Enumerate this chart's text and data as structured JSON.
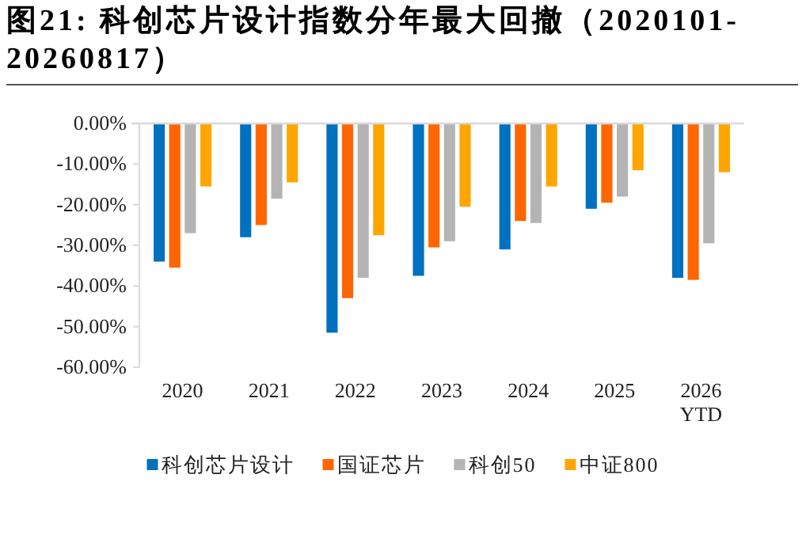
{
  "chart_data": {
    "type": "bar",
    "title": "图21: 科创芯片设计指数分年最大回撤（2020101-20260817）",
    "categories": [
      "2020",
      "2021",
      "2022",
      "2023",
      "2024",
      "2025",
      "2026 YTD"
    ],
    "series": [
      {
        "name": "科创芯片设计",
        "color": "#0070c0",
        "values": [
          -34,
          -28,
          -51.5,
          -37.5,
          -31,
          -21,
          -38
        ]
      },
      {
        "name": "国证芯片",
        "color": "#ff6600",
        "values": [
          -35.5,
          -25,
          -43,
          -30.5,
          -24,
          -19.5,
          -38.5
        ]
      },
      {
        "name": "科创50",
        "color": "#b4b4b4",
        "values": [
          -27,
          -18.5,
          -38,
          -29,
          -24.5,
          -18,
          -29.5
        ]
      },
      {
        "name": "中证800",
        "color": "#ffa500",
        "values": [
          -15.5,
          -14.5,
          -27.5,
          -20.5,
          -15.5,
          -11.5,
          -12
        ]
      }
    ],
    "ylim": [
      -60,
      0
    ],
    "yticks": [
      {
        "value": 0,
        "label": "0.00%"
      },
      {
        "value": -10,
        "label": "-10.00%"
      },
      {
        "value": -20,
        "label": "-20.00%"
      },
      {
        "value": -30,
        "label": "-30.00%"
      },
      {
        "value": -40,
        "label": "-40.00%"
      },
      {
        "value": -50,
        "label": "-50.00%"
      },
      {
        "value": -60,
        "label": "-60.00%"
      }
    ],
    "legend": "bottom",
    "grid": false
  }
}
